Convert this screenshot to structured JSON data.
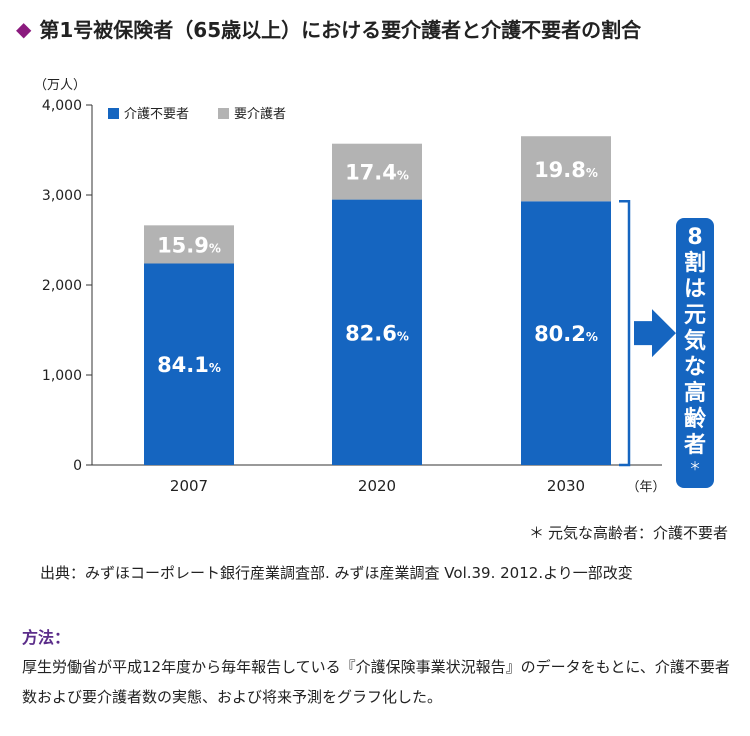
{
  "title": "第1号被保険者（65歳以上）における要介護者と介護不要者の割合",
  "colors": {
    "accent": "#8b1a7e",
    "not_needed": "#1565c0",
    "needed": "#b3b3b3",
    "method_label": "#5b2d8a"
  },
  "chart_data": {
    "type": "bar",
    "stacked": true,
    "categories": [
      "2007",
      "2020",
      "2030"
    ],
    "series": [
      {
        "name": "介護不要者",
        "values": [
          2239,
          2949,
          2930
        ],
        "percent_labels": [
          "84.1",
          "82.6",
          "80.2"
        ]
      },
      {
        "name": "要介護者",
        "values": [
          424,
          621,
          723
        ],
        "percent_labels": [
          "15.9",
          "17.4",
          "19.8"
        ]
      }
    ],
    "percent_unit": "%",
    "ylim": [
      0,
      4000
    ],
    "yticks": [
      0,
      1000,
      2000,
      3000,
      4000
    ],
    "ytick_labels": [
      "0",
      "1,000",
      "2,000",
      "3,000",
      "4,000"
    ],
    "y_unit_label": "（万人）",
    "x_unit_label": "（年）",
    "legend_position": "top-left",
    "callout": {
      "bracket_series": "介護不要者",
      "bracket_category": "2030",
      "chars": [
        "8",
        "割",
        "は",
        "元",
        "気",
        "な",
        "高",
        "齢",
        "者"
      ],
      "mark": "＊"
    }
  },
  "note": {
    "mark": "＊",
    "text": "元気な高齢者：介護不要者"
  },
  "source": "出典：みずほコーポレート銀行産業調査部. みずほ産業調査 Vol.39. 2012.より一部改変",
  "method": {
    "label": "方法：",
    "text": "厚生労働省が平成12年度から毎年報告している『介護保険事業状況報告』のデータをもとに、介護不要者数および要介護者数の実態、および将来予測をグラフ化した。"
  }
}
